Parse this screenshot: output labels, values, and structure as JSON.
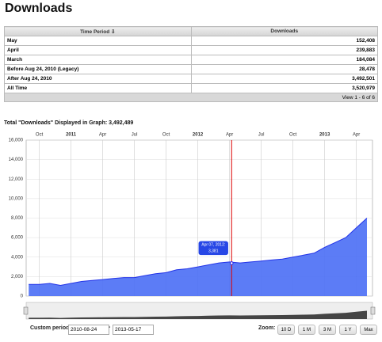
{
  "header": {
    "title": "Downloads"
  },
  "table": {
    "columns": [
      "Time Period ⇩",
      "Downloads"
    ],
    "rows": [
      [
        "May",
        "152,408"
      ],
      [
        "April",
        "239,883"
      ],
      [
        "March",
        "184,084"
      ],
      [
        "Before Aug 24, 2010 (Legacy)",
        "28,478"
      ],
      [
        "After Aug 24, 2010",
        "3,492,501"
      ],
      [
        "All Time",
        "3,520,979"
      ]
    ],
    "footer": "View 1 - 6 of 6"
  },
  "chart_data": {
    "type": "area",
    "title": "Total \"Downloads\" Displayed in Graph: 3,492,489",
    "x": [
      "2010-09",
      "2010-10",
      "2010-11",
      "2010-12",
      "2011-01",
      "2011-02",
      "2011-03",
      "2011-04",
      "2011-05",
      "2011-06",
      "2011-07",
      "2011-08",
      "2011-09",
      "2011-10",
      "2011-11",
      "2011-12",
      "2012-01",
      "2012-02",
      "2012-03",
      "2012-04",
      "2012-05",
      "2012-06",
      "2012-07",
      "2012-08",
      "2012-09",
      "2012-10",
      "2012-11",
      "2012-12",
      "2013-01",
      "2013-02",
      "2013-03",
      "2013-04",
      "2013-05"
    ],
    "series": [
      {
        "name": "Downloads",
        "color": "#2233e8",
        "values": [
          1200,
          1200,
          1300,
          1100,
          1300,
          1500,
          1600,
          1700,
          1800,
          1900,
          1900,
          2100,
          2300,
          2400,
          2700,
          2800,
          3000,
          3200,
          3400,
          3500,
          3400,
          3500,
          3600,
          3700,
          3800,
          4000,
          4200,
          4400,
          5000,
          5500,
          6000,
          7000,
          8000
        ]
      }
    ],
    "xlim": [
      "2010-08-24",
      "2013-05-17"
    ],
    "xticks": [
      {
        "value": "2010-10",
        "label": "Oct"
      },
      {
        "value": "2011-01",
        "label": "2011"
      },
      {
        "value": "2011-04",
        "label": "Apr"
      },
      {
        "value": "2011-07",
        "label": "Jul"
      },
      {
        "value": "2011-10",
        "label": "Oct"
      },
      {
        "value": "2012-01",
        "label": "2012"
      },
      {
        "value": "2012-04",
        "label": "Apr"
      },
      {
        "value": "2012-07",
        "label": "Jul"
      },
      {
        "value": "2012-10",
        "label": "Oct"
      },
      {
        "value": "2013-01",
        "label": "2013"
      },
      {
        "value": "2013-04",
        "label": "Apr"
      }
    ],
    "ylim": [
      0,
      16000
    ],
    "yticks": [
      0,
      {
        "value": 2000,
        "label": "2,000"
      },
      {
        "value": 4000,
        "label": "4,000"
      },
      {
        "value": 6000,
        "label": "6,000"
      },
      {
        "value": 8000,
        "label": "8,000"
      },
      {
        "value": 10000,
        "label": "10,000"
      },
      {
        "value": 12000,
        "label": "12,000"
      },
      {
        "value": 14000,
        "label": "14,000"
      },
      {
        "value": 16000,
        "label": "16,000"
      }
    ],
    "grid": true,
    "annotation": {
      "text": "Apr 07, 2012:",
      "value": {
        "value": 3381,
        "label": "3,381"
      }
    }
  },
  "controls": {
    "custom_label": "Custom period:",
    "from": "2010-08-24",
    "to": "2013-05-17",
    "zoom_label": "Zoom:",
    "zoom": [
      "10 D",
      "1 M",
      "3 M",
      "1 Y",
      "Max"
    ]
  }
}
